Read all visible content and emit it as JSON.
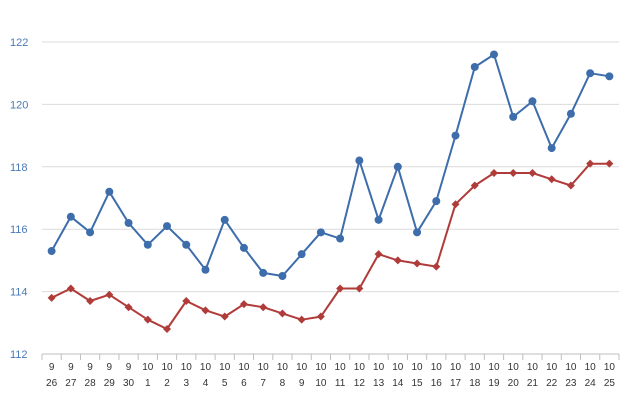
{
  "chart_data": {
    "type": "line",
    "categories": [
      [
        "9",
        "26"
      ],
      [
        "9",
        "27"
      ],
      [
        "9",
        "28"
      ],
      [
        "9",
        "29"
      ],
      [
        "9",
        "30"
      ],
      [
        "10",
        "1"
      ],
      [
        "10",
        "2"
      ],
      [
        "10",
        "3"
      ],
      [
        "10",
        "4"
      ],
      [
        "10",
        "5"
      ],
      [
        "10",
        "6"
      ],
      [
        "10",
        "7"
      ],
      [
        "10",
        "8"
      ],
      [
        "10",
        "9"
      ],
      [
        "10",
        "10"
      ],
      [
        "10",
        "11"
      ],
      [
        "10",
        "12"
      ],
      [
        "10",
        "13"
      ],
      [
        "10",
        "14"
      ],
      [
        "10",
        "15"
      ],
      [
        "10",
        "16"
      ],
      [
        "10",
        "17"
      ],
      [
        "10",
        "18"
      ],
      [
        "10",
        "19"
      ],
      [
        "10",
        "20"
      ],
      [
        "10",
        "21"
      ],
      [
        "10",
        "22"
      ],
      [
        "10",
        "23"
      ],
      [
        "10",
        "24"
      ],
      [
        "10",
        "25"
      ]
    ],
    "series": [
      {
        "color": "#3e6dab",
        "marker": "circle",
        "values": [
          115.3,
          116.4,
          115.9,
          117.2,
          116.2,
          115.5,
          116.1,
          115.5,
          114.7,
          116.3,
          115.4,
          114.6,
          114.5,
          115.2,
          115.9,
          115.7,
          118.2,
          116.3,
          118.0,
          115.9,
          116.9,
          119.0,
          121.2,
          121.6,
          119.6,
          120.1,
          118.6,
          119.7,
          121.0,
          120.9
        ]
      },
      {
        "color": "#b03c3a",
        "marker": "diamond",
        "values": [
          113.8,
          114.1,
          113.7,
          113.9,
          113.5,
          113.1,
          112.8,
          113.7,
          113.4,
          113.2,
          113.6,
          113.5,
          113.3,
          113.1,
          113.2,
          114.1,
          114.1,
          115.2,
          115.0,
          114.9,
          114.8,
          116.8,
          117.4,
          117.8,
          117.8,
          117.8,
          117.6,
          117.4,
          118.1,
          118.1
        ]
      }
    ],
    "yticks": [
      "112",
      "114",
      "116",
      "118",
      "120",
      "122"
    ],
    "ylim": [
      112,
      122
    ],
    "grid": true,
    "title": "",
    "xlabel": "",
    "ylabel": ""
  }
}
